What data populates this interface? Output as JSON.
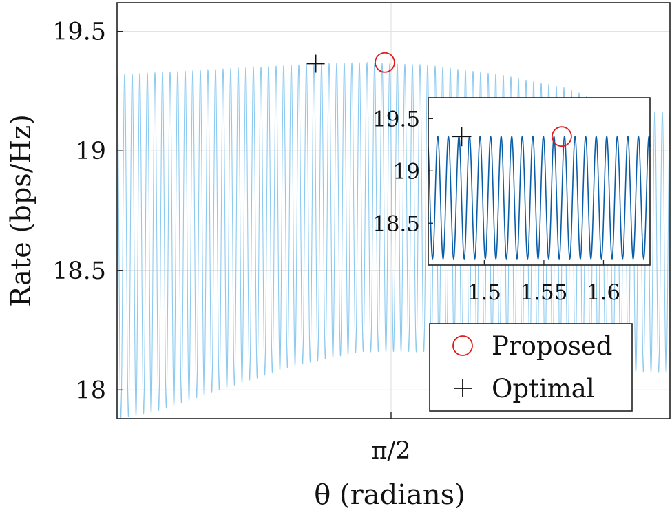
{
  "chart_data": [
    {
      "type": "line",
      "panel": "main",
      "xlabel": "θ (radians)",
      "ylabel": "Rate (bps/Hz)",
      "x_ticks": [
        {
          "label": "π/2",
          "value": 1.5708
        }
      ],
      "y_ticks": [
        18,
        18.5,
        19,
        19.5
      ],
      "ylim": [
        17.88,
        19.62
      ],
      "xlim": [
        1.095,
        2.055
      ],
      "grid": true,
      "series": [
        {
          "name": "Rate",
          "color": "#8dcaf0",
          "oscillation": {
            "cycles": 73,
            "upper_envelope": [
              [
                1.095,
                19.32
              ],
              [
                1.33,
                19.35
              ],
              [
                1.44,
                19.365
              ],
              [
                1.52,
                19.37
              ],
              [
                1.63,
                19.36
              ],
              [
                1.76,
                19.32
              ],
              [
                1.88,
                19.26
              ],
              [
                1.96,
                19.18
              ],
              [
                2.055,
                19.16
              ]
            ],
            "lower_envelope": [
              [
                1.095,
                17.88
              ],
              [
                1.15,
                17.9
              ],
              [
                1.25,
                17.98
              ],
              [
                1.4,
                18.1
              ],
              [
                1.52,
                18.16
              ],
              [
                1.63,
                18.16
              ],
              [
                1.75,
                18.13
              ],
              [
                1.88,
                18.1
              ],
              [
                1.96,
                18.08
              ],
              [
                2.055,
                18.07
              ]
            ]
          }
        }
      ],
      "markers": [
        {
          "name": "Proposed",
          "symbol": "circle",
          "color": "#e31a1c",
          "x": 1.56,
          "y": 19.37
        },
        {
          "name": "Optimal",
          "symbol": "plus",
          "color": "#111111",
          "x": 1.44,
          "y": 19.365
        }
      ],
      "legend": {
        "placement": "bottom-right",
        "entries": [
          {
            "label": "Proposed",
            "symbol": "circle",
            "color": "#e31a1c"
          },
          {
            "label": "Optimal",
            "symbol": "plus",
            "color": "#111111"
          }
        ]
      }
    },
    {
      "type": "line",
      "panel": "inset",
      "x_ticks": [
        {
          "label": "1.5",
          "value": 1.5
        },
        {
          "label": "1.55",
          "value": 1.55
        },
        {
          "label": "1.6",
          "value": 1.6
        }
      ],
      "y_ticks": [
        {
          "label": "18.5",
          "value": 18.5
        },
        {
          "label": "19",
          "value": 19
        },
        {
          "label": "19.5",
          "value": 19.5
        }
      ],
      "xlim": [
        1.453,
        1.639
      ],
      "ylim": [
        18.1,
        19.7
      ],
      "grid": false,
      "series": [
        {
          "name": "Rate",
          "color": "#0a5ea8",
          "oscillation": {
            "cycles": 21,
            "upper": 19.33,
            "lower": 18.16
          }
        }
      ],
      "markers": [
        {
          "name": "Optimal",
          "symbol": "plus",
          "color": "#111111",
          "x": 1.481,
          "y": 19.33
        },
        {
          "name": "Proposed",
          "symbol": "circle",
          "color": "#e31a1c",
          "x": 1.565,
          "y": 19.33
        }
      ]
    }
  ]
}
